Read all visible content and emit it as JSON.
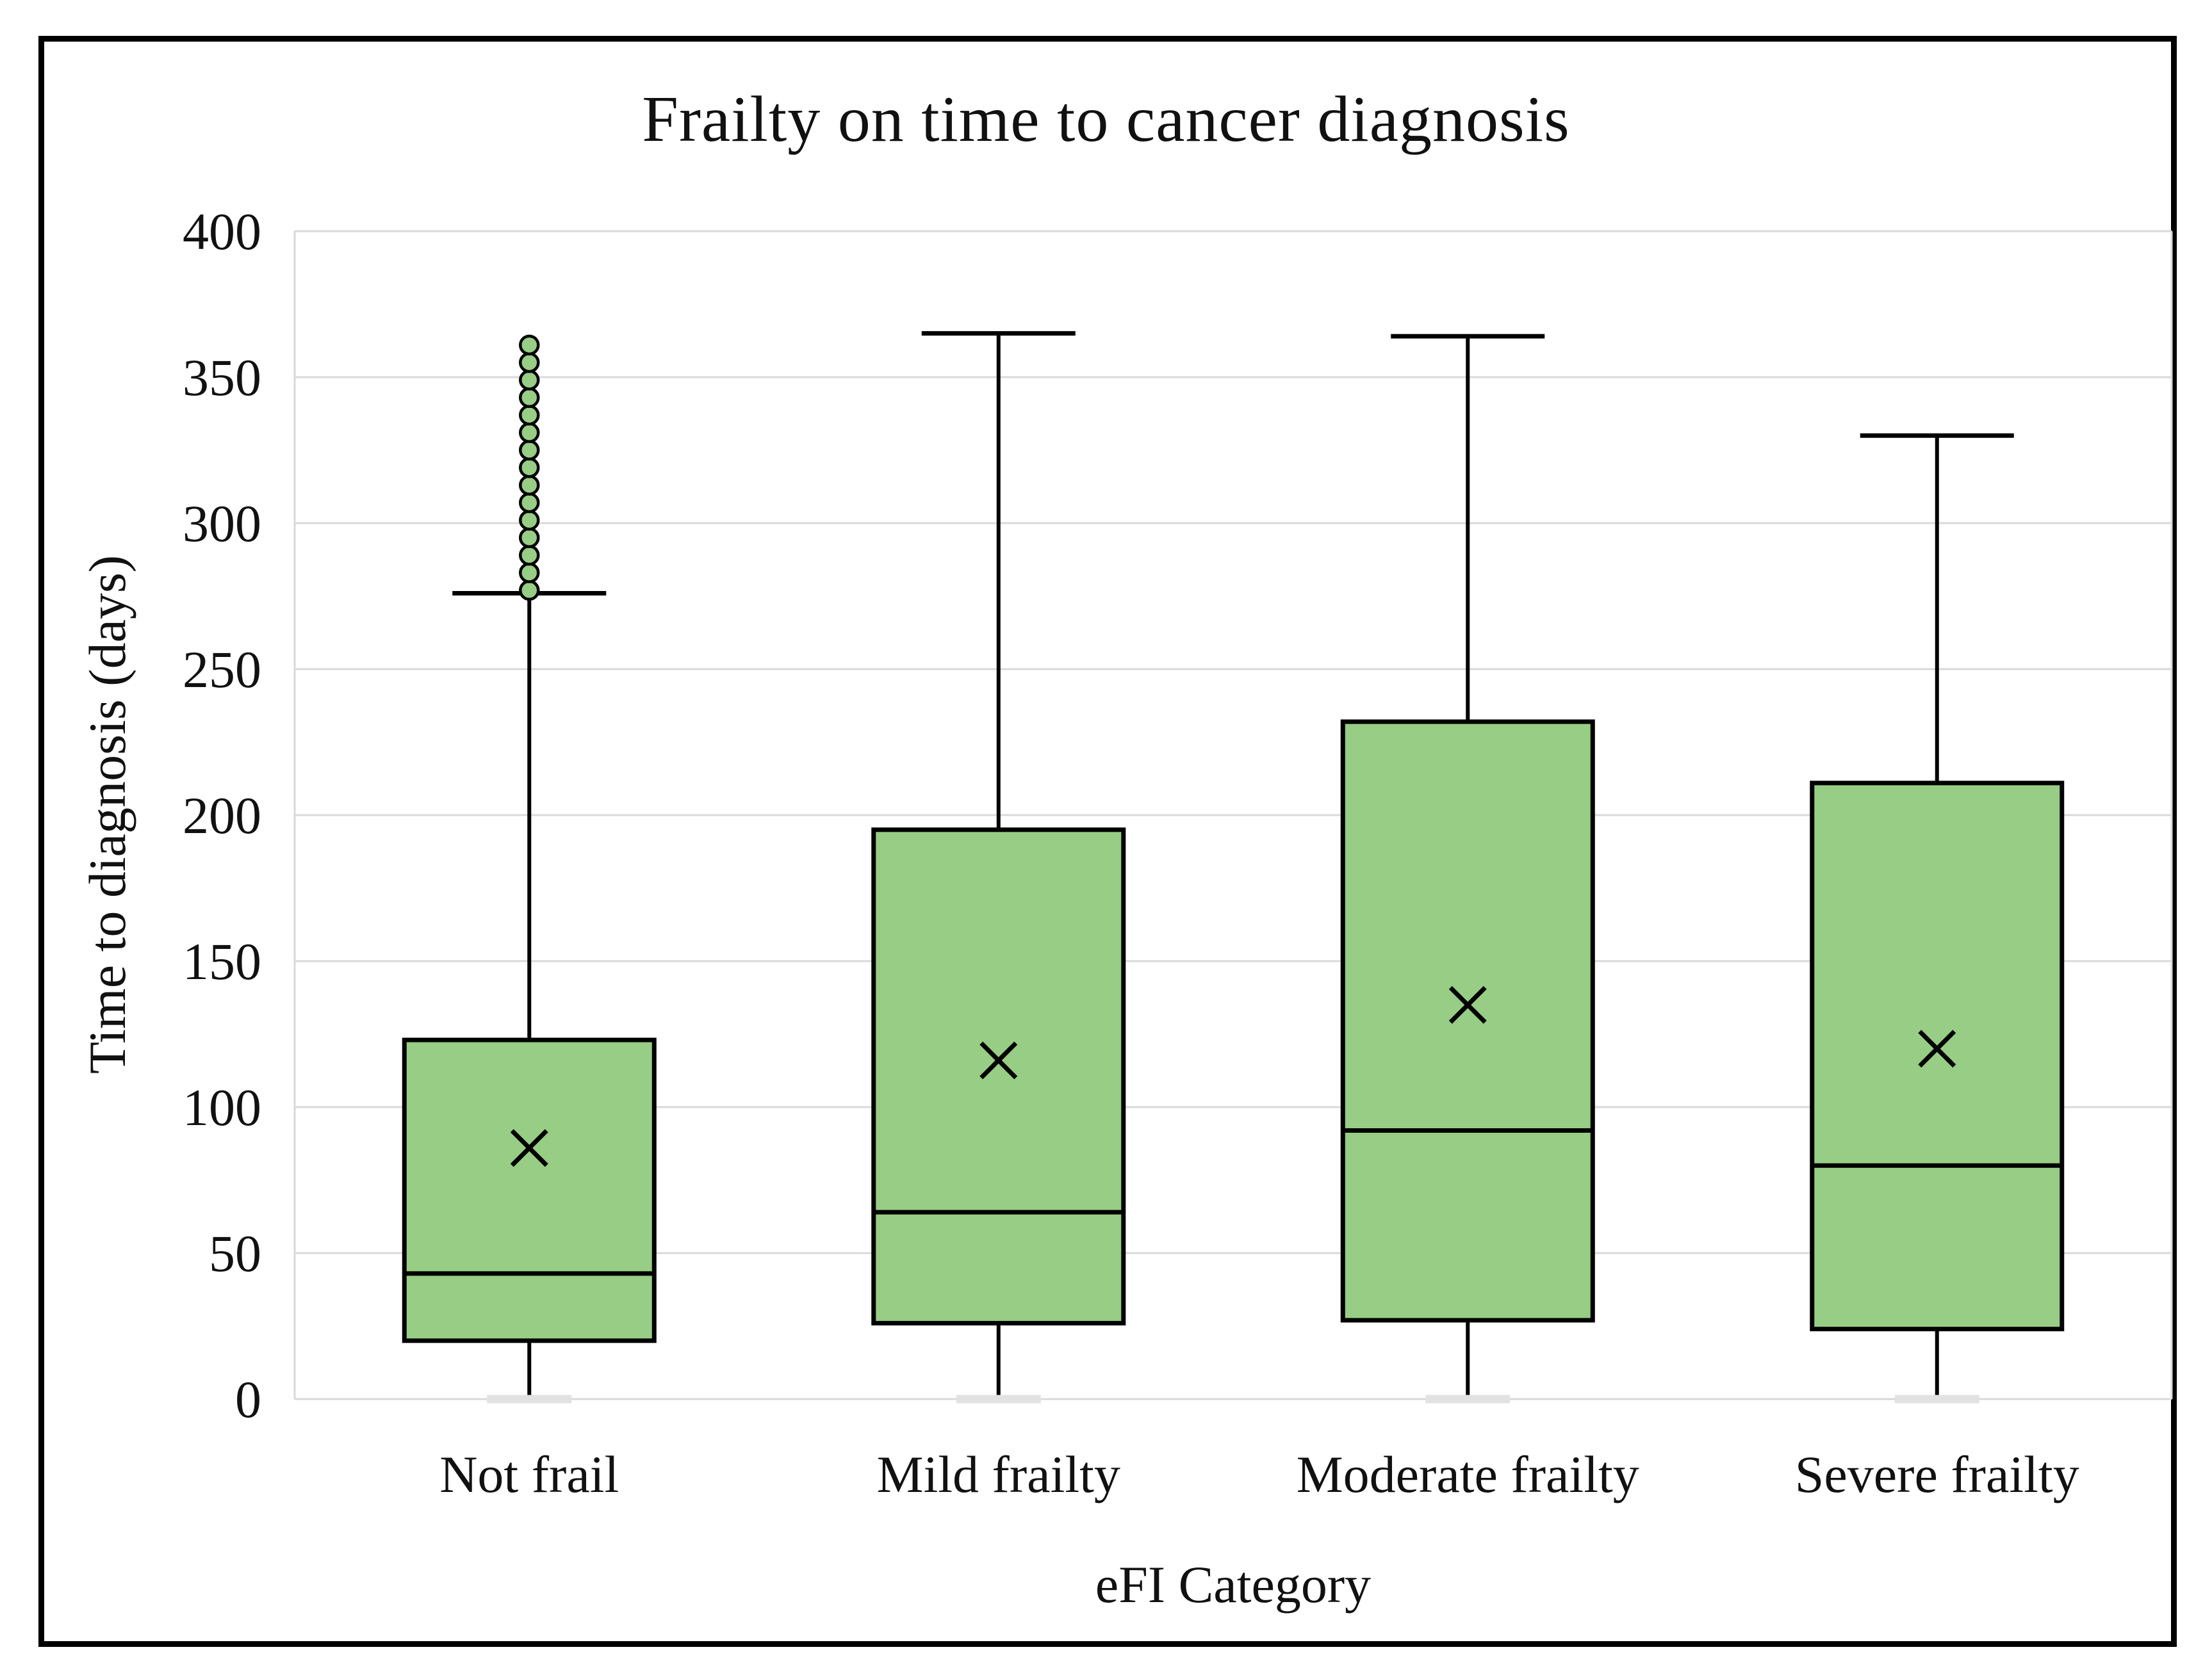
{
  "figure": {
    "title": "Frailty on time to cancer diagnosis",
    "y_axis_title": "Time to diagnosis (days)",
    "x_axis_title": "eFI Category"
  },
  "chart_data": {
    "type": "boxplot",
    "title": "Frailty on time to cancer diagnosis",
    "xlabel": "eFI Category",
    "ylabel": "Time to diagnosis (days)",
    "ylim": [
      0,
      400
    ],
    "yticks": [
      0,
      50,
      100,
      150,
      200,
      250,
      300,
      350,
      400
    ],
    "grid": true,
    "legend": "none",
    "colors": {
      "box_fill": "#97cd84",
      "line": "#000000",
      "gridline": "#d9d9d9",
      "min_cap": "#e2e2e2",
      "text": "#111111"
    },
    "categories": [
      "Not frail",
      "Mild frailty",
      "Moderate frailty",
      "Severe frailty"
    ],
    "series": [
      {
        "category": "Not frail",
        "min": 0,
        "q1": 20,
        "median": 43,
        "q3": 123,
        "max": 276,
        "mean": 86,
        "outliers": [
          277,
          283,
          289,
          295,
          301,
          307,
          313,
          319,
          325,
          331,
          337,
          343,
          349,
          355,
          361
        ]
      },
      {
        "category": "Mild frailty",
        "min": 0,
        "q1": 26,
        "median": 64,
        "q3": 195,
        "max": 365,
        "mean": 116,
        "outliers": []
      },
      {
        "category": "Moderate frailty",
        "min": 0,
        "q1": 27,
        "median": 92,
        "q3": 232,
        "max": 364,
        "mean": 135,
        "outliers": []
      },
      {
        "category": "Severe frailty",
        "min": 0,
        "q1": 24,
        "median": 80,
        "q3": 211,
        "max": 330,
        "mean": 120,
        "outliers": []
      }
    ]
  }
}
